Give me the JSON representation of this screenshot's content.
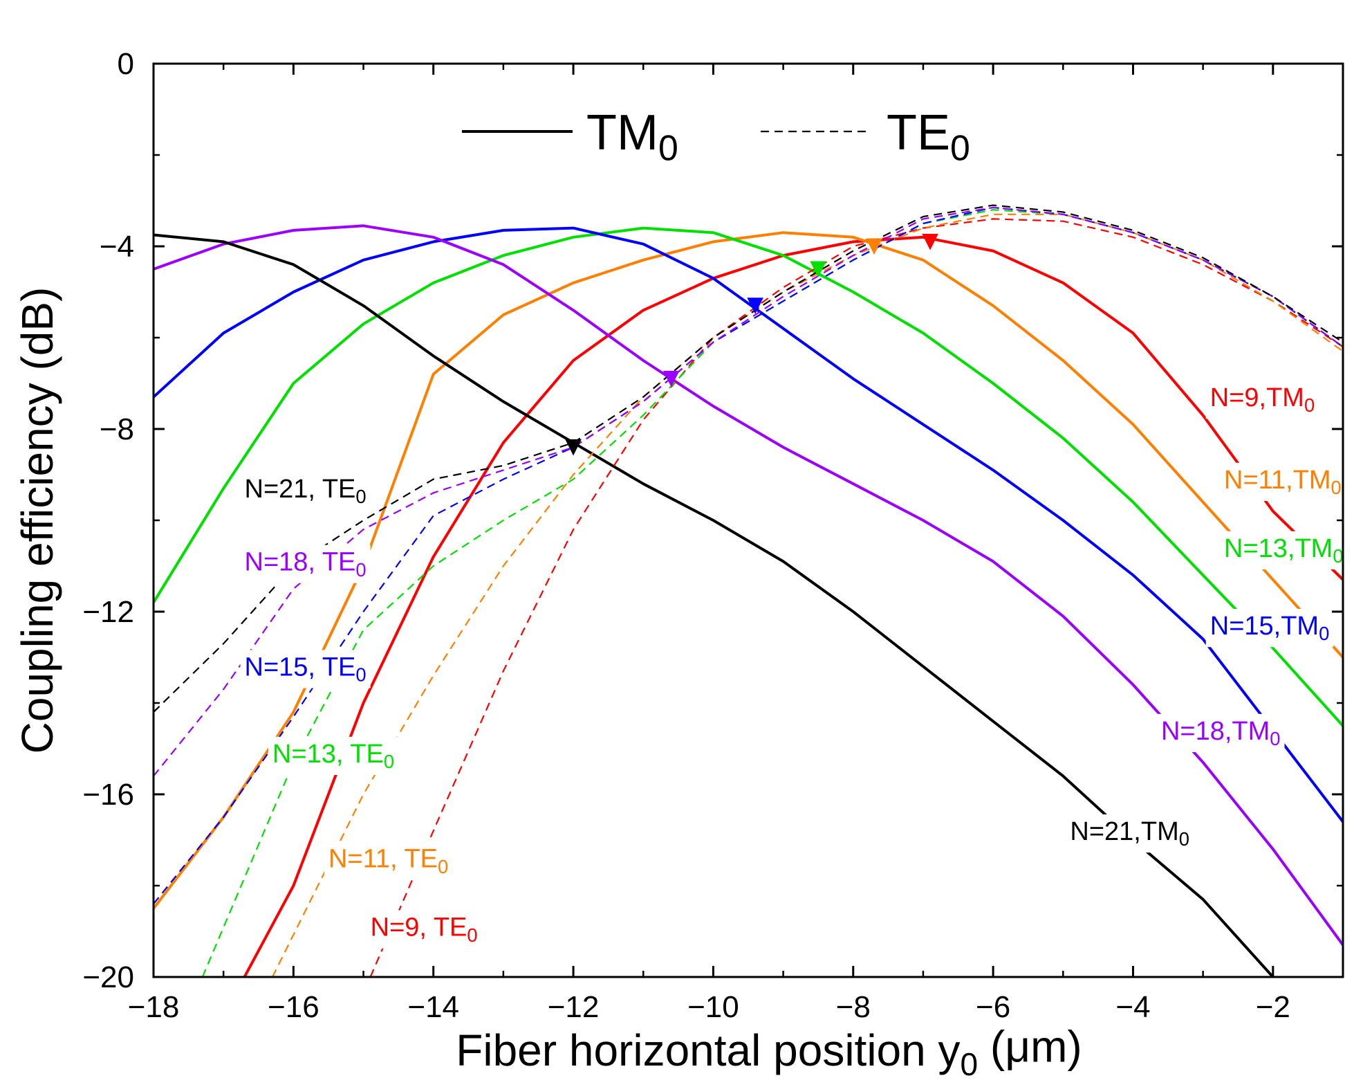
{
  "chart_data": {
    "type": "line",
    "xlabel": "Fiber horizontal position",
    "xlabel_symbol": "y",
    "xlabel_sub": "0",
    "xlabel_unit": "(μm)",
    "ylabel": "Coupling efficiency (dB)",
    "xlim": [
      -18,
      -1
    ],
    "ylim": [
      -20,
      0
    ],
    "xticks": [
      -18,
      -16,
      -14,
      -12,
      -10,
      -8,
      -6,
      -4,
      -2
    ],
    "xtick_labels": [
      "−18",
      "−16",
      "−14",
      "−12",
      "−10",
      "−8",
      "−6",
      "−4",
      "−2"
    ],
    "yticks": [
      0,
      -4,
      -8,
      -12,
      -16,
      -20
    ],
    "ytick_labels": [
      "0",
      "−4",
      "−8",
      "−12",
      "−16",
      "−20"
    ],
    "legend": [
      {
        "label": "TM",
        "sub": "0",
        "style": "solid"
      },
      {
        "label": "TE",
        "sub": "0",
        "style": "dashed"
      }
    ],
    "colors": {
      "9": "#ff0000",
      "11": "#ff8000",
      "13": "#00e000",
      "15": "#0000ff",
      "18": "#9b00ff",
      "21": "#000000"
    },
    "series": [
      {
        "name": "N=9,TM0",
        "N": "9",
        "mode": "TM",
        "x": [
          -16.7,
          -16,
          -15,
          -14,
          -13,
          -12,
          -11,
          -10,
          -9,
          -8,
          -7,
          -6,
          -5,
          -4,
          -3,
          -2,
          -1
        ],
        "y": [
          -20,
          -18,
          -14,
          -10.8,
          -8.3,
          -6.5,
          -5.4,
          -4.7,
          -4.2,
          -3.9,
          -3.8,
          -4.1,
          -4.8,
          -5.9,
          -7.7,
          -9.8,
          -11.3
        ]
      },
      {
        "name": "N=11,TM0",
        "N": "11",
        "mode": "TM",
        "x": [
          -18,
          -17,
          -16,
          -15,
          -14,
          -13,
          -12,
          -11,
          -10,
          -9,
          -8,
          -7,
          -6,
          -5,
          -4,
          -3,
          -2,
          -1
        ],
        "y": [
          -18.5,
          -16.5,
          -14.2,
          -11,
          -6.8,
          -5.5,
          -4.8,
          -4.3,
          -3.9,
          -3.7,
          -3.8,
          -4.3,
          -5.3,
          -6.5,
          -7.9,
          -9.6,
          -11.3,
          -13
        ],
        "x_extra": [],
        "y_extra": []
      },
      {
        "name": "N=13,TM0",
        "N": "13",
        "mode": "TM",
        "x": [
          -18,
          -17,
          -16,
          -15,
          -14,
          -13,
          -12,
          -11,
          -10,
          -9,
          -8,
          -7,
          -6,
          -5,
          -4,
          -3,
          -2,
          -1
        ],
        "y": [
          -11.8,
          -9.3,
          -7,
          -5.7,
          -4.8,
          -4.2,
          -3.8,
          -3.6,
          -3.7,
          -4.2,
          -5,
          -5.9,
          -7,
          -8.2,
          -9.6,
          -11.2,
          -12.8,
          -14.5
        ]
      },
      {
        "name": "N=15,TM0",
        "N": "15",
        "mode": "TM",
        "x": [
          -18,
          -17,
          -16,
          -15,
          -14,
          -13,
          -12,
          -11,
          -10,
          -9,
          -8,
          -7,
          -6,
          -5,
          -4,
          -3,
          -2,
          -1
        ],
        "y": [
          -7.3,
          -5.9,
          -5,
          -4.3,
          -3.9,
          -3.65,
          -3.6,
          -3.95,
          -4.7,
          -5.8,
          -6.9,
          -7.9,
          -8.9,
          -10,
          -11.2,
          -12.6,
          -14.6,
          -16.6
        ]
      },
      {
        "name": "N=18,TM0",
        "N": "18",
        "mode": "TM",
        "x": [
          -18,
          -17,
          -16,
          -15,
          -14,
          -13,
          -12,
          -11,
          -10,
          -9,
          -8,
          -7,
          -6,
          -5,
          -4,
          -3,
          -2,
          -1
        ],
        "y": [
          -4.5,
          -3.95,
          -3.65,
          -3.55,
          -3.8,
          -4.4,
          -5.4,
          -6.5,
          -7.5,
          -8.4,
          -9.2,
          -10,
          -10.9,
          -12.1,
          -13.6,
          -15.3,
          -17.2,
          -19.3
        ]
      },
      {
        "name": "N=21,TM0",
        "N": "21",
        "mode": "TM",
        "x": [
          -18,
          -17,
          -16,
          -15,
          -14,
          -13,
          -12,
          -11,
          -10,
          -9,
          -8,
          -7,
          -6,
          -5,
          -4,
          -3,
          -2
        ],
        "y": [
          -3.75,
          -3.9,
          -4.4,
          -5.3,
          -6.4,
          -7.4,
          -8.3,
          -9.2,
          -10,
          -10.9,
          -12,
          -13.2,
          -14.4,
          -15.6,
          -17,
          -18.3,
          -20
        ]
      },
      {
        "name": "N=9,TE0",
        "N": "9",
        "mode": "TE",
        "x": [
          -14.9,
          -14,
          -13,
          -12,
          -11,
          -10,
          -9,
          -8,
          -7,
          -6,
          -5,
          -4,
          -3,
          -2,
          -1
        ],
        "y": [
          -20,
          -16.8,
          -13.3,
          -10.2,
          -7.8,
          -6,
          -4.9,
          -4,
          -3.6,
          -3.4,
          -3.45,
          -3.8,
          -4.4,
          -5.2,
          -6.2
        ]
      },
      {
        "name": "N=11,TE0",
        "N": "11",
        "mode": "TE",
        "x": [
          -16.3,
          -15,
          -14,
          -13,
          -12,
          -11,
          -10,
          -9,
          -8,
          -7,
          -6,
          -5,
          -4,
          -3,
          -2,
          -1
        ],
        "y": [
          -20,
          -16,
          -13.4,
          -11,
          -9,
          -7.3,
          -6,
          -5,
          -4.2,
          -3.6,
          -3.3,
          -3.3,
          -3.7,
          -4.3,
          -5.2,
          -6.3
        ]
      },
      {
        "name": "N=13,TE0",
        "N": "13",
        "mode": "TE",
        "x": [
          -17.3,
          -16,
          -15,
          -14,
          -13,
          -12,
          -11,
          -10,
          -9,
          -8,
          -7,
          -6,
          -5,
          -4,
          -3,
          -2,
          -1
        ],
        "y": [
          -20,
          -15.3,
          -12.4,
          -11,
          -10,
          -9.1,
          -7.7,
          -6.1,
          -5.2,
          -4.3,
          -3.5,
          -3.2,
          -3.3,
          -3.7,
          -4.3,
          -5.1,
          -6.2
        ]
      },
      {
        "name": "N=15,TE0",
        "N": "15",
        "mode": "TE",
        "x": [
          -18,
          -17,
          -16,
          -15,
          -14,
          -13,
          -12,
          -11,
          -10,
          -9,
          -8,
          -7,
          -6,
          -5,
          -4,
          -3,
          -2,
          -1
        ],
        "y": [
          -18.4,
          -16.5,
          -14.3,
          -12,
          -9.9,
          -9.1,
          -8.4,
          -7.4,
          -6.1,
          -5.2,
          -4.3,
          -3.5,
          -3.15,
          -3.3,
          -3.7,
          -4.3,
          -5.1,
          -6.2
        ]
      },
      {
        "name": "N=18,TE0",
        "N": "18",
        "mode": "TE",
        "x": [
          -18,
          -17,
          -16,
          -15,
          -14,
          -13,
          -12,
          -11,
          -10,
          -9,
          -8,
          -7,
          -6,
          -5,
          -4,
          -3,
          -2,
          -1
        ],
        "y": [
          -15.6,
          -13.7,
          -11.5,
          -10.2,
          -9.4,
          -8.9,
          -8.4,
          -7.4,
          -6.1,
          -5.1,
          -4.2,
          -3.4,
          -3.15,
          -3.3,
          -3.7,
          -4.3,
          -5.1,
          -6.2
        ]
      },
      {
        "name": "N=21,TE0",
        "N": "21",
        "mode": "TE",
        "x": [
          -18,
          -17,
          -16,
          -15,
          -14,
          -13,
          -12,
          -11,
          -10,
          -9,
          -8,
          -7,
          -6,
          -5,
          -4,
          -3,
          -2,
          -1
        ],
        "y": [
          -14.2,
          -12.7,
          -11,
          -10,
          -9.1,
          -8.8,
          -8.3,
          -7.3,
          -6,
          -5,
          -4.1,
          -3.35,
          -3.1,
          -3.25,
          -3.65,
          -4.25,
          -5.1,
          -6.1
        ]
      }
    ],
    "markers": [
      {
        "N": "9",
        "x": -6.9,
        "y": -3.9
      },
      {
        "N": "11",
        "x": -7.7,
        "y": -4.0
      },
      {
        "N": "13",
        "x": -8.5,
        "y": -4.5
      },
      {
        "N": "15",
        "x": -9.4,
        "y": -5.3
      },
      {
        "N": "18",
        "x": -10.6,
        "y": -6.9
      },
      {
        "N": "21",
        "x": -12.0,
        "y": -8.4
      }
    ],
    "annotations": [
      {
        "base": "N=9,TM",
        "sub": "0",
        "N": "9",
        "x": -2.9,
        "y": -7.5,
        "label_gap": true
      },
      {
        "base": "N=11,TM",
        "sub": "0",
        "N": "11",
        "x": -2.7,
        "y": -9.3
      },
      {
        "base": "N=13,TM",
        "sub": "0",
        "N": "13",
        "x": -2.7,
        "y": -10.8
      },
      {
        "base": "N=15,TM",
        "sub": "0",
        "N": "15",
        "x": -2.9,
        "y": -12.5
      },
      {
        "base": "N=18,TM",
        "sub": "0",
        "N": "18",
        "x": -3.6,
        "y": -14.8
      },
      {
        "base": "N=21,TM",
        "sub": "0",
        "N": "21",
        "x": -4.9,
        "y": -17.0
      },
      {
        "base": "N=21, TE",
        "sub": "0",
        "N": "21",
        "x": -16.7,
        "y": -9.5
      },
      {
        "base": "N=18, TE",
        "sub": "0",
        "N": "18",
        "x": -16.7,
        "y": -11.1
      },
      {
        "base": "N=15, TE",
        "sub": "0",
        "N": "15",
        "x": -16.7,
        "y": -13.4
      },
      {
        "base": "N=13, TE",
        "sub": "0",
        "N": "13",
        "x": -16.3,
        "y": -15.3
      },
      {
        "base": "N=11, TE",
        "sub": "0",
        "N": "11",
        "x": -15.5,
        "y": -17.6
      },
      {
        "base": "N=9, TE",
        "sub": "0",
        "N": "9",
        "x": -14.9,
        "y": -19.1
      }
    ]
  }
}
